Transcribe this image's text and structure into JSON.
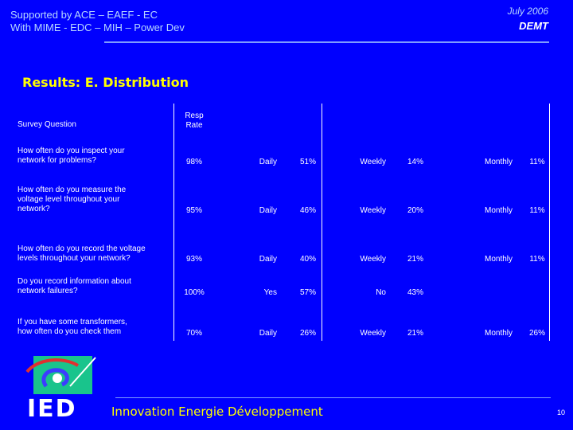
{
  "header": {
    "line1": "Supported by ACE – EAEF - EC",
    "line2": "With MIME - EDC – MIH – Power Dev",
    "date": "July 2006",
    "org": "DEMT"
  },
  "section_title": "Results:  E. Distribution",
  "table": {
    "col_question": "Survey Question",
    "col_resp_rate_1": "Resp",
    "col_resp_rate_2": "Rate",
    "rows": [
      {
        "q1": "How often do you inspect your",
        "q2": "network for problems?",
        "q3": "",
        "rate": "98%",
        "l1": "Daily",
        "v1": "51%",
        "l2": "Weekly",
        "v2": "14%",
        "l3": "Monthly",
        "v3": "11%"
      },
      {
        "q1": "How often do you measure the",
        "q2": "voltage level throughout your",
        "q3": "network?",
        "rate": "95%",
        "l1": "Daily",
        "v1": "46%",
        "l2": "Weekly",
        "v2": "20%",
        "l3": "Monthly",
        "v3": "11%"
      },
      {
        "q1": "How often do you record the voltage",
        "q2": "levels throughout your network?",
        "q3": "",
        "rate": "93%",
        "l1": "Daily",
        "v1": "40%",
        "l2": "Weekly",
        "v2": "21%",
        "l3": "Monthly",
        "v3": "11%"
      },
      {
        "q1": "Do you record information about",
        "q2": "network failures?",
        "q3": "",
        "rate": "100%",
        "l1": "Yes",
        "v1": "57%",
        "l2": "No",
        "v2": "43%",
        "l3": "",
        "v3": ""
      },
      {
        "q1": "If you have some transformers,",
        "q2": "how often do you check them",
        "q3": "",
        "rate": "70%",
        "l1": "Daily",
        "v1": "26%",
        "l2": "Weekly",
        "v2": "21%",
        "l3": "Monthly",
        "v3": "26%"
      }
    ]
  },
  "footer": {
    "logo_text": "IED",
    "org_name": "Innovation Energie Développement",
    "page": "10"
  },
  "colors": {
    "background": "#0000fe",
    "accent_yellow": "#ffff00",
    "logo_green": "#19c48c"
  }
}
